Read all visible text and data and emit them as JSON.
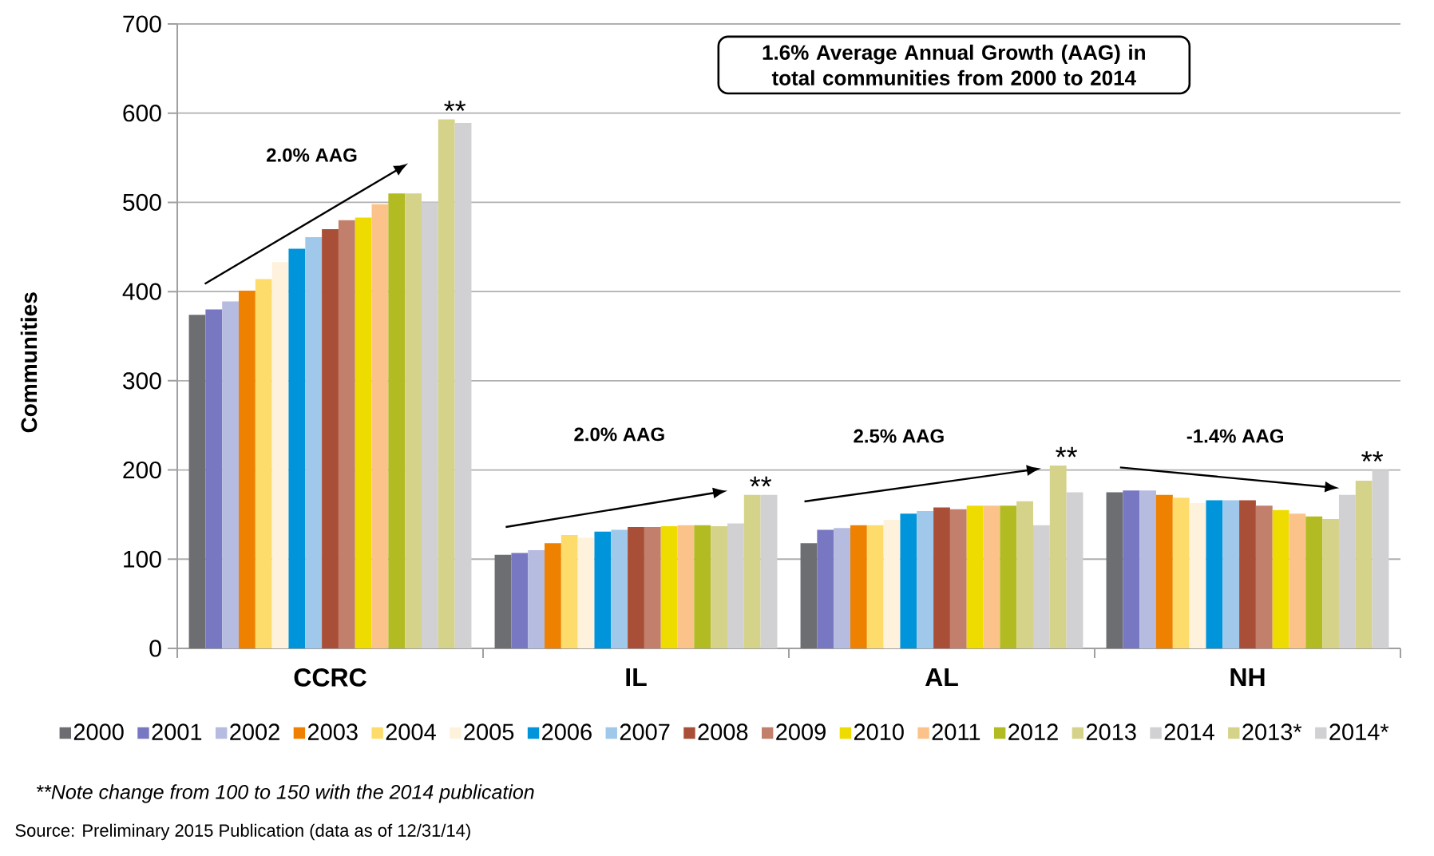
{
  "chart_data": {
    "type": "bar",
    "ylabel": "Communities",
    "categories": [
      "CCRC",
      "IL",
      "AL",
      "NH"
    ],
    "series": [
      {
        "name": "2000",
        "color": "#6d6e71",
        "values": [
          374,
          105,
          118,
          175
        ]
      },
      {
        "name": "2001",
        "color": "#7878c2",
        "values": [
          380,
          107,
          133,
          177
        ]
      },
      {
        "name": "2002",
        "color": "#b6bbe0",
        "values": [
          389,
          110,
          135,
          177
        ]
      },
      {
        "name": "2003",
        "color": "#ee8200",
        "values": [
          401,
          118,
          138,
          172
        ]
      },
      {
        "name": "2004",
        "color": "#fddc6c",
        "values": [
          414,
          127,
          138,
          169
        ]
      },
      {
        "name": "2005",
        "color": "#fff2dc",
        "values": [
          433,
          124,
          144,
          163
        ]
      },
      {
        "name": "2006",
        "color": "#0095da",
        "values": [
          448,
          131,
          151,
          166
        ]
      },
      {
        "name": "2007",
        "color": "#a0c8ea",
        "values": [
          461,
          133,
          154,
          166
        ]
      },
      {
        "name": "2008",
        "color": "#a94e37",
        "values": [
          470,
          136,
          158,
          166
        ]
      },
      {
        "name": "2009",
        "color": "#c27f6c",
        "values": [
          480,
          136,
          156,
          160
        ]
      },
      {
        "name": "2010",
        "color": "#eedc00",
        "values": [
          483,
          137,
          160,
          155
        ]
      },
      {
        "name": "2011",
        "color": "#fbc38a",
        "values": [
          498,
          138,
          160,
          151
        ]
      },
      {
        "name": "2012",
        "color": "#b2bb22",
        "values": [
          510,
          138,
          160,
          148
        ]
      },
      {
        "name": "2013",
        "color": "#d5d389",
        "values": [
          510,
          137,
          165,
          145
        ]
      },
      {
        "name": "2014",
        "color": "#d1d1d3",
        "values": [
          500,
          140,
          138,
          172
        ]
      },
      {
        "name": "2013*",
        "color": "#d5d389",
        "values": [
          593,
          172,
          205,
          188
        ]
      },
      {
        "name": "2014*",
        "color": "#d1d1d3",
        "values": [
          589,
          172,
          175,
          200
        ]
      }
    ],
    "ylim": [
      0,
      700
    ],
    "yticks": [
      0,
      100,
      200,
      300,
      400,
      500,
      600,
      700
    ],
    "grid": "y",
    "legend": "bottom",
    "annotations": [
      "1.6% Average Annual Growth (AAG) in total communities from 2000 to 2014",
      "2.0% AAG",
      "2.0% AAG",
      "2.5% AAG",
      "-1.4% AAG",
      "**",
      "**",
      "**",
      "**",
      "**Note change from 100 to 150 with the 2014 publication",
      "Source: Preliminary 2015 Publication (data as of 12/31/14)"
    ]
  }
}
